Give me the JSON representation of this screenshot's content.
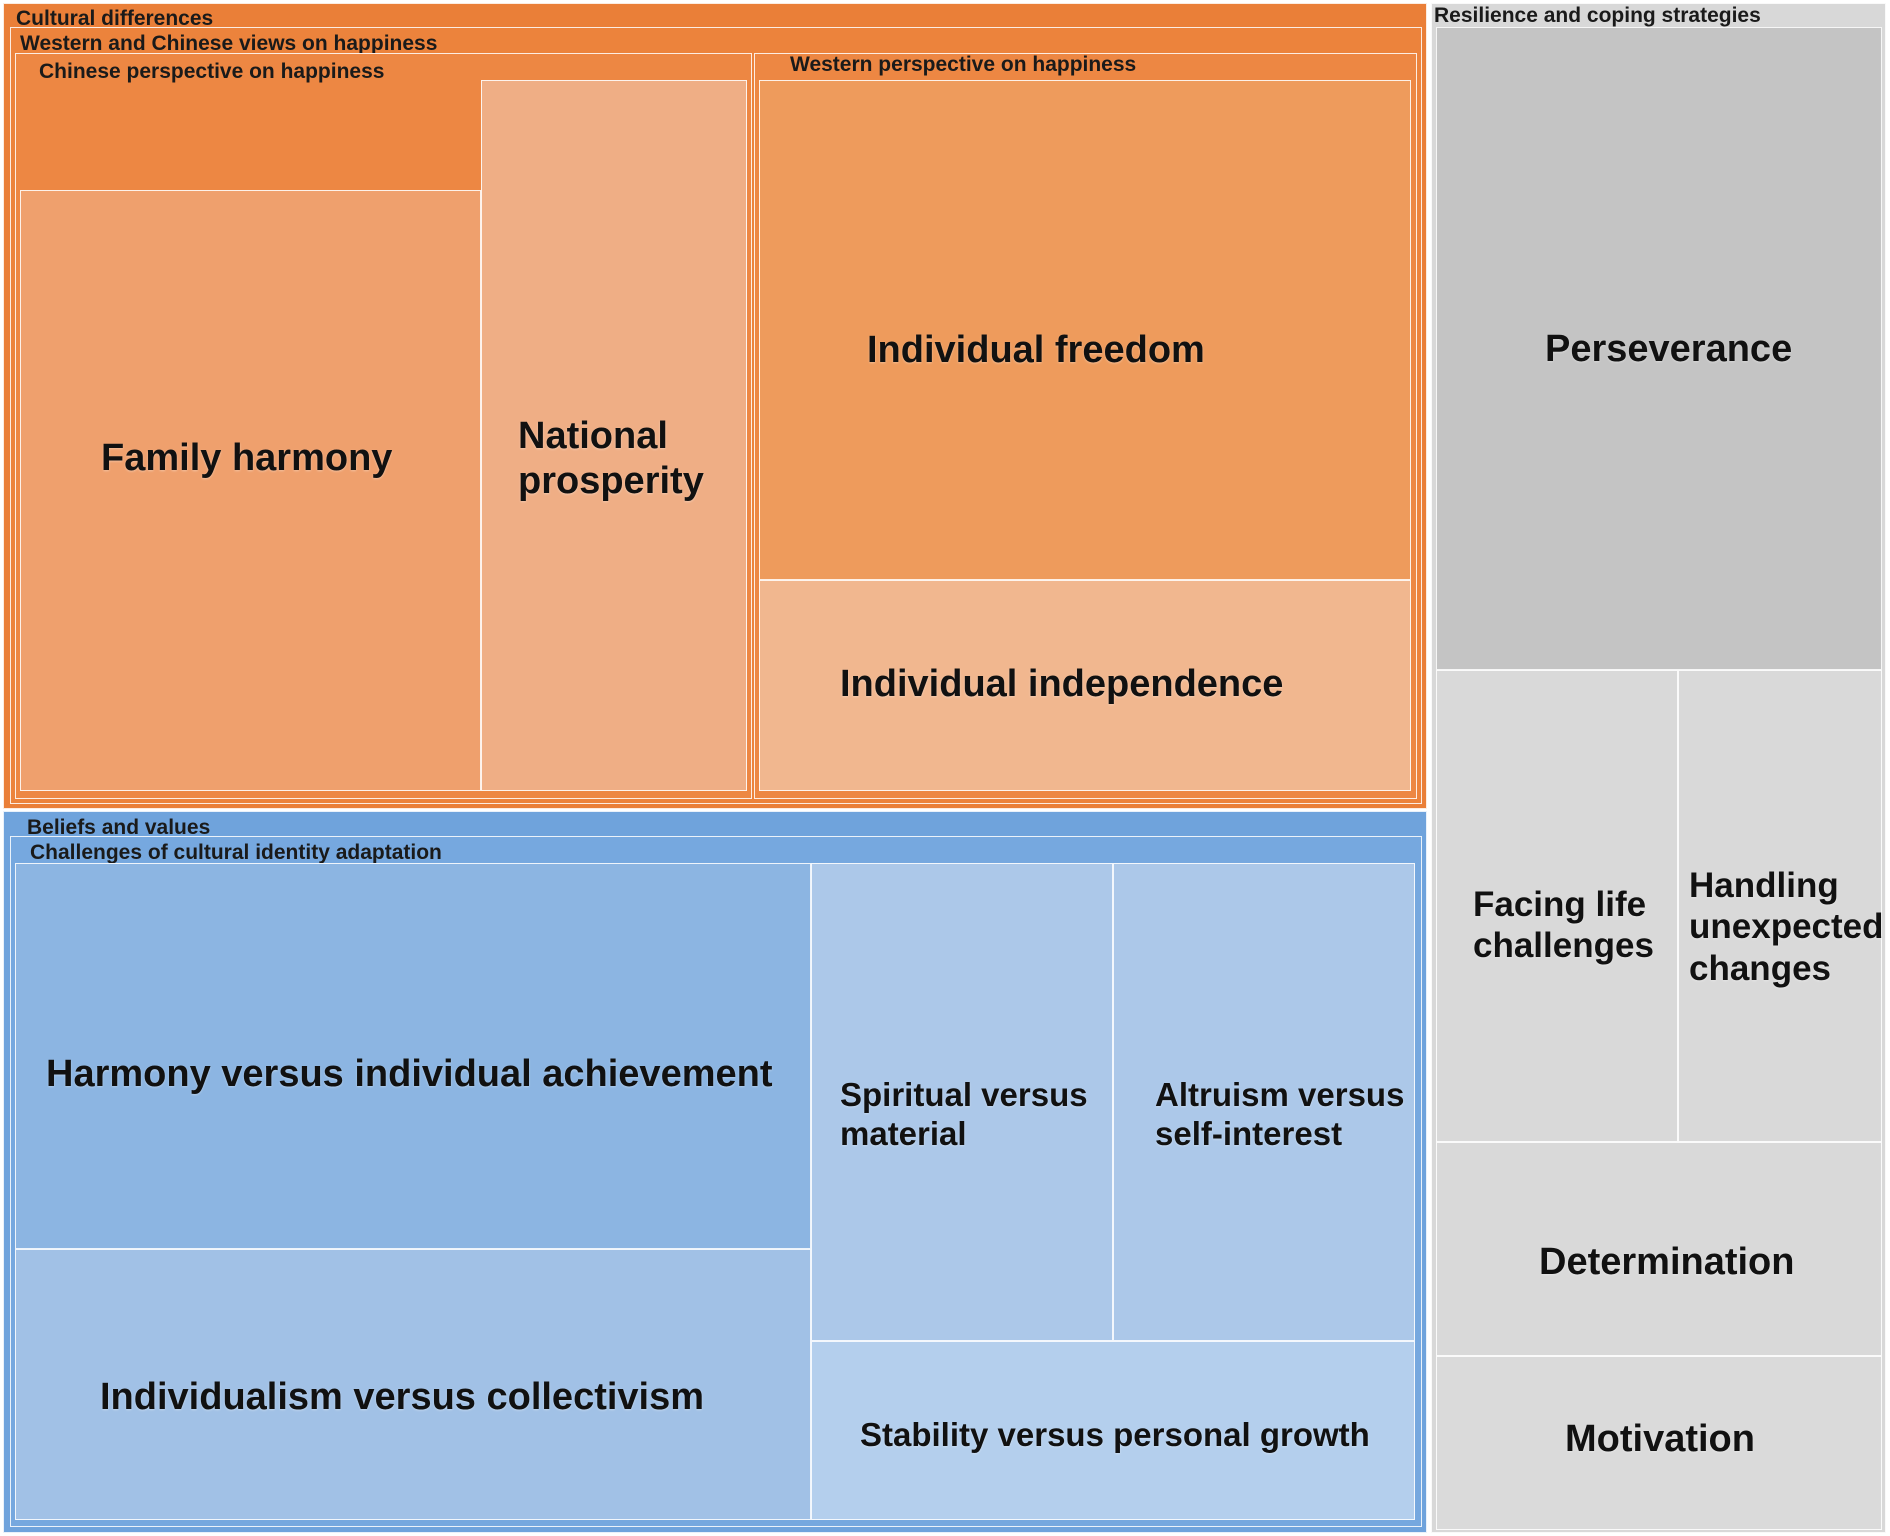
{
  "chart_data": {
    "type": "treemap",
    "title": "",
    "colors": {
      "cultural_differences": "#ea7f38",
      "beliefs_and_values": "#6fa3dc",
      "resilience": "#d8d8d8"
    },
    "nodes": [
      {
        "id": "cd",
        "label": "Cultural differences",
        "parent": null
      },
      {
        "id": "wc",
        "label": "Western and Chinese views on happiness",
        "parent": "cd"
      },
      {
        "id": "chn",
        "label": "Chinese perspective on happiness",
        "parent": "wc"
      },
      {
        "id": "wst",
        "label": "Western perspective on happiness",
        "parent": "wc"
      },
      {
        "id": "fh",
        "label": "Family harmony",
        "parent": "chn"
      },
      {
        "id": "np",
        "label": "National\nprosperity",
        "parent": "chn"
      },
      {
        "id": "ifr",
        "label": "Individual freedom",
        "parent": "wst"
      },
      {
        "id": "iin",
        "label": "Individual independence",
        "parent": "wst"
      },
      {
        "id": "bv",
        "label": "Beliefs and values",
        "parent": null
      },
      {
        "id": "cia",
        "label": "Challenges of cultural identity adaptation",
        "parent": "bv"
      },
      {
        "id": "hia",
        "label": "Harmony versus individual achievement",
        "parent": "cia"
      },
      {
        "id": "ivc",
        "label": "Individualism versus collectivism",
        "parent": "cia"
      },
      {
        "id": "svm",
        "label": "Spiritual versus\nmaterial",
        "parent": "cia"
      },
      {
        "id": "avs",
        "label": "Altruism versus\nself-interest",
        "parent": "cia"
      },
      {
        "id": "spg",
        "label": "Stability versus personal growth",
        "parent": "cia"
      },
      {
        "id": "rcs",
        "label": "Resilience and coping strategies",
        "parent": null
      },
      {
        "id": "per",
        "label": "Perseverance",
        "parent": "rcs"
      },
      {
        "id": "flc",
        "label": "Facing life\nchallenges",
        "parent": "rcs"
      },
      {
        "id": "huc",
        "label": "Handling\nunexpected\nchanges",
        "parent": "rcs"
      },
      {
        "id": "det",
        "label": "Determination",
        "parent": "rcs"
      },
      {
        "id": "mot",
        "label": "Motivation",
        "parent": "rcs"
      }
    ]
  }
}
